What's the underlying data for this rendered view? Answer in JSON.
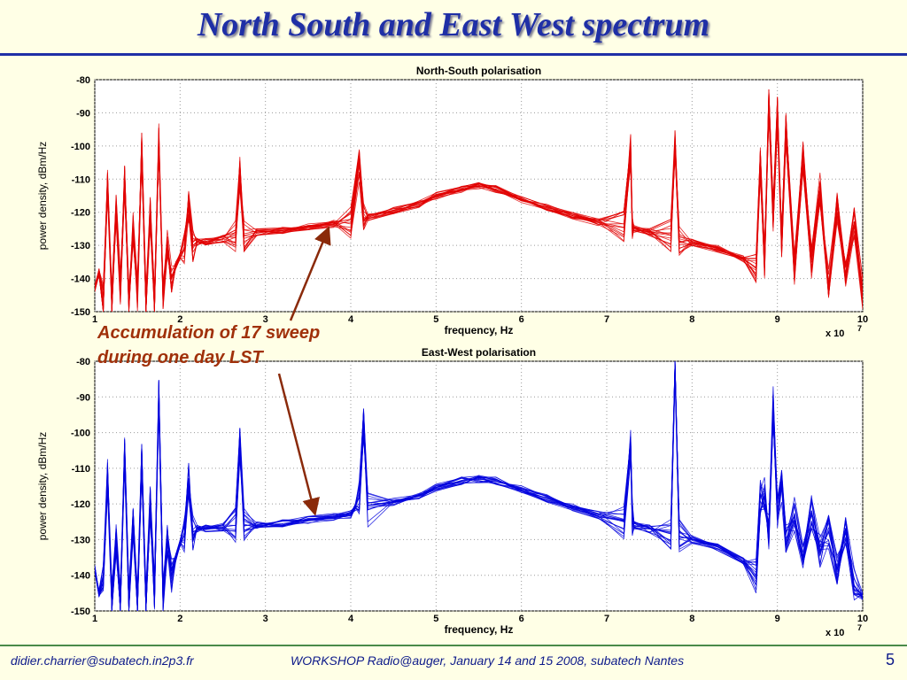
{
  "slide": {
    "title": "North South and East West spectrum",
    "annotation_line1": "Accumulation of 17 sweep",
    "annotation_line2": "during one day LST",
    "footer_email": "didier.charrier@subatech.in2p3.fr",
    "footer_workshop": "WORKSHOP Radio@auger, January 14 and 15 2008, subatech Nantes",
    "page_number": "5"
  },
  "chart_data": [
    {
      "type": "line",
      "title": "North-South polarisation",
      "xlabel": "frequency, Hz",
      "ylabel": "power density, dBm/Hz",
      "x_multiplier": "x 10",
      "x_multiplier_exp": "7",
      "xlim": [
        1,
        10
      ],
      "ylim": [
        -150,
        -80
      ],
      "xticks": [
        "1",
        "2",
        "3",
        "4",
        "5",
        "6",
        "7",
        "8",
        "9",
        "10"
      ],
      "yticks": [
        "-80",
        "-90",
        "-100",
        "-110",
        "-120",
        "-130",
        "-140",
        "-150"
      ],
      "grid": true,
      "color": "#e00000",
      "sweeps": 17,
      "series": [
        {
          "x": [
            1.0,
            1.05,
            1.1,
            1.15,
            1.2,
            1.25,
            1.3,
            1.35,
            1.4,
            1.45,
            1.5,
            1.55,
            1.6,
            1.65,
            1.7,
            1.75,
            1.8,
            1.85,
            1.9,
            1.95,
            2.0,
            2.05,
            2.1,
            2.15,
            2.2,
            2.3,
            2.5,
            2.65,
            2.7,
            2.75,
            2.9,
            3.2,
            3.5,
            3.8,
            4.0,
            4.1,
            4.15,
            4.2,
            4.5,
            4.8,
            5.0,
            5.3,
            5.5,
            5.7,
            6.0,
            6.3,
            6.6,
            6.9,
            7.2,
            7.28,
            7.3,
            7.32,
            7.5,
            7.75,
            7.8,
            7.85,
            8.0,
            8.3,
            8.6,
            8.75,
            8.8,
            8.85,
            8.9,
            8.95,
            9.0,
            9.05,
            9.1,
            9.2,
            9.3,
            9.4,
            9.5,
            9.6,
            9.7,
            9.8,
            9.9,
            10.0
          ],
          "values": [
            -143,
            -138,
            -146,
            -112,
            -147,
            -118,
            -143,
            -110,
            -147,
            -125,
            -145,
            -100,
            -148,
            -120,
            -147,
            -98,
            -146,
            -130,
            -140,
            -136,
            -133,
            -131,
            -118,
            -130,
            -129,
            -129,
            -128,
            -127,
            -108,
            -127,
            -126,
            -125.5,
            -124.5,
            -123.5,
            -123,
            -106,
            -122,
            -121.5,
            -119.5,
            -117.5,
            -115,
            -113,
            -112,
            -113,
            -116,
            -118.5,
            -121,
            -123,
            -124.5,
            -101,
            -124,
            -125,
            -126,
            -127,
            -98,
            -128,
            -129,
            -131,
            -134,
            -137,
            -105,
            -135,
            -86,
            -121,
            -90,
            -130,
            -95,
            -137,
            -103,
            -135,
            -113,
            -141,
            -118,
            -139,
            -123,
            -145
          ]
        }
      ]
    },
    {
      "type": "line",
      "title": "East-West polarisation",
      "xlabel": "frequency, Hz",
      "ylabel": "power density, dBm/Hz",
      "x_multiplier": "x 10",
      "x_multiplier_exp": "7",
      "xlim": [
        1,
        10
      ],
      "ylim": [
        -150,
        -80
      ],
      "xticks": [
        "1",
        "2",
        "3",
        "4",
        "5",
        "6",
        "7",
        "8",
        "9",
        "10"
      ],
      "yticks": [
        "-80",
        "-90",
        "-100",
        "-110",
        "-120",
        "-130",
        "-140",
        "-150"
      ],
      "grid": true,
      "color": "#0000dd",
      "sweeps": 17,
      "series": [
        {
          "x": [
            1.0,
            1.05,
            1.1,
            1.15,
            1.2,
            1.25,
            1.3,
            1.35,
            1.4,
            1.45,
            1.5,
            1.55,
            1.6,
            1.65,
            1.7,
            1.75,
            1.8,
            1.85,
            1.9,
            1.95,
            2.0,
            2.05,
            2.1,
            2.15,
            2.2,
            2.3,
            2.5,
            2.65,
            2.7,
            2.75,
            2.9,
            3.2,
            3.5,
            3.8,
            4.0,
            4.05,
            4.1,
            4.15,
            4.2,
            4.5,
            4.8,
            5.0,
            5.3,
            5.5,
            5.7,
            6.0,
            6.3,
            6.6,
            6.9,
            7.2,
            7.28,
            7.3,
            7.32,
            7.5,
            7.75,
            7.8,
            7.85,
            8.0,
            8.3,
            8.6,
            8.75,
            8.8,
            8.85,
            8.9,
            8.95,
            9.0,
            9.05,
            9.1,
            9.2,
            9.3,
            9.4,
            9.5,
            9.6,
            9.7,
            9.8,
            9.9,
            10.0
          ],
          "values": [
            -138,
            -145,
            -142,
            -112,
            -147,
            -130,
            -148,
            -106,
            -147,
            -125,
            -147,
            -108,
            -148,
            -120,
            -145,
            -90,
            -146,
            -130,
            -140,
            -135,
            -131,
            -129,
            -113,
            -128,
            -127,
            -127,
            -126.5,
            -126,
            -103,
            -126,
            -126,
            -125.5,
            -124.5,
            -123.5,
            -123,
            -121,
            -118,
            -97,
            -121.5,
            -119.5,
            -117.5,
            -115.5,
            -113.5,
            -113,
            -113.5,
            -116,
            -118.5,
            -121,
            -123,
            -125,
            -104,
            -124,
            -126,
            -127,
            -128,
            -80,
            -129,
            -130,
            -132,
            -136,
            -140,
            -118,
            -117,
            -128,
            -92,
            -122,
            -115,
            -130,
            -123,
            -136,
            -122,
            -133,
            -128,
            -138,
            -128,
            -143,
            -146
          ]
        }
      ]
    }
  ]
}
